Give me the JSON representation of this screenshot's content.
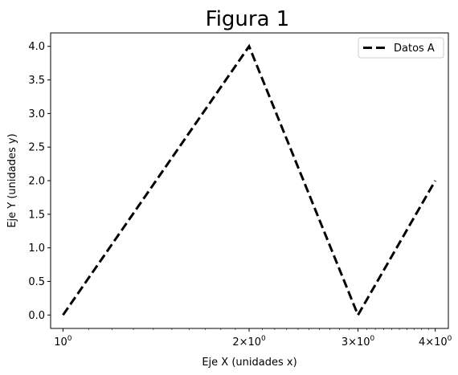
{
  "chart_data": {
    "type": "line",
    "title": "Figura 1",
    "xlabel": "Eje X (unidades x)",
    "ylabel": "Eje Y (unidades y)",
    "xscale": "log",
    "xlim": [
      0.955,
      4.2
    ],
    "ylim": [
      -0.2,
      4.2
    ],
    "grid": false,
    "legend_position": "top-right",
    "x_ticks": [
      {
        "value": 1,
        "mantissa": "",
        "base": "10",
        "exp": "0"
      },
      {
        "value": 2,
        "mantissa": "2×",
        "base": "10",
        "exp": "0"
      },
      {
        "value": 3,
        "mantissa": "3×",
        "base": "10",
        "exp": "0"
      },
      {
        "value": 4,
        "mantissa": "4×",
        "base": "10",
        "exp": "0"
      }
    ],
    "y_ticks": [
      {
        "value": 0.0,
        "label": "0.0"
      },
      {
        "value": 0.5,
        "label": "0.5"
      },
      {
        "value": 1.0,
        "label": "1.0"
      },
      {
        "value": 1.5,
        "label": "1.5"
      },
      {
        "value": 2.0,
        "label": "2.0"
      },
      {
        "value": 2.5,
        "label": "2.5"
      },
      {
        "value": 3.0,
        "label": "3.0"
      },
      {
        "value": 3.5,
        "label": "3.5"
      },
      {
        "value": 4.0,
        "label": "4.0"
      }
    ],
    "series": [
      {
        "name": "Datos A",
        "color": "#000000",
        "line_style": "dashed",
        "x": [
          1,
          2,
          3,
          4
        ],
        "y": [
          0,
          4,
          0,
          2
        ]
      }
    ]
  }
}
